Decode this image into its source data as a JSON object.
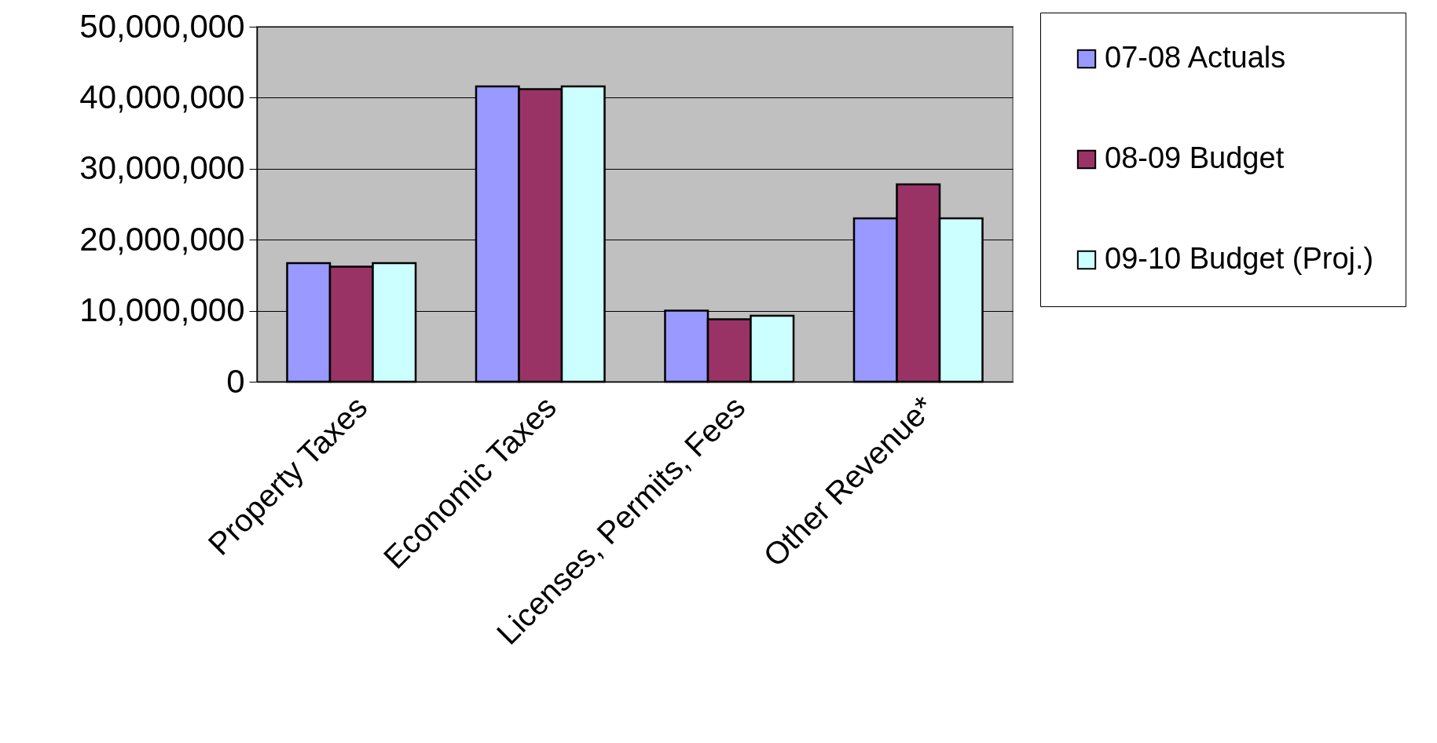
{
  "chart_data": {
    "type": "bar",
    "categories": [
      "Property Taxes",
      "Economic Taxes",
      "Licenses, Permits, Fees",
      "Other Revenue*"
    ],
    "series": [
      {
        "name": "07-08 Actuals",
        "color": "#9999ff",
        "values": [
          16700000,
          41600000,
          10000000,
          23000000
        ]
      },
      {
        "name": "08-09 Budget",
        "color": "#993366",
        "values": [
          16200000,
          41200000,
          8800000,
          27800000
        ]
      },
      {
        "name": "09-10 Budget (Proj.)",
        "color": "#ccffff",
        "values": [
          16700000,
          41600000,
          9300000,
          23000000
        ]
      }
    ],
    "ylim": [
      0,
      50000000
    ],
    "yticks": [
      0,
      {
        "value": 10000000,
        "label": "10,000,000"
      },
      {
        "value": 20000000,
        "label": "20,000,000"
      },
      {
        "value": 30000000,
        "label": "30,000,000"
      },
      {
        "value": 40000000,
        "label": "40,000,000"
      },
      {
        "value": 50000000,
        "label": "50,000,000"
      }
    ],
    "grid": "y",
    "legend": "right"
  }
}
